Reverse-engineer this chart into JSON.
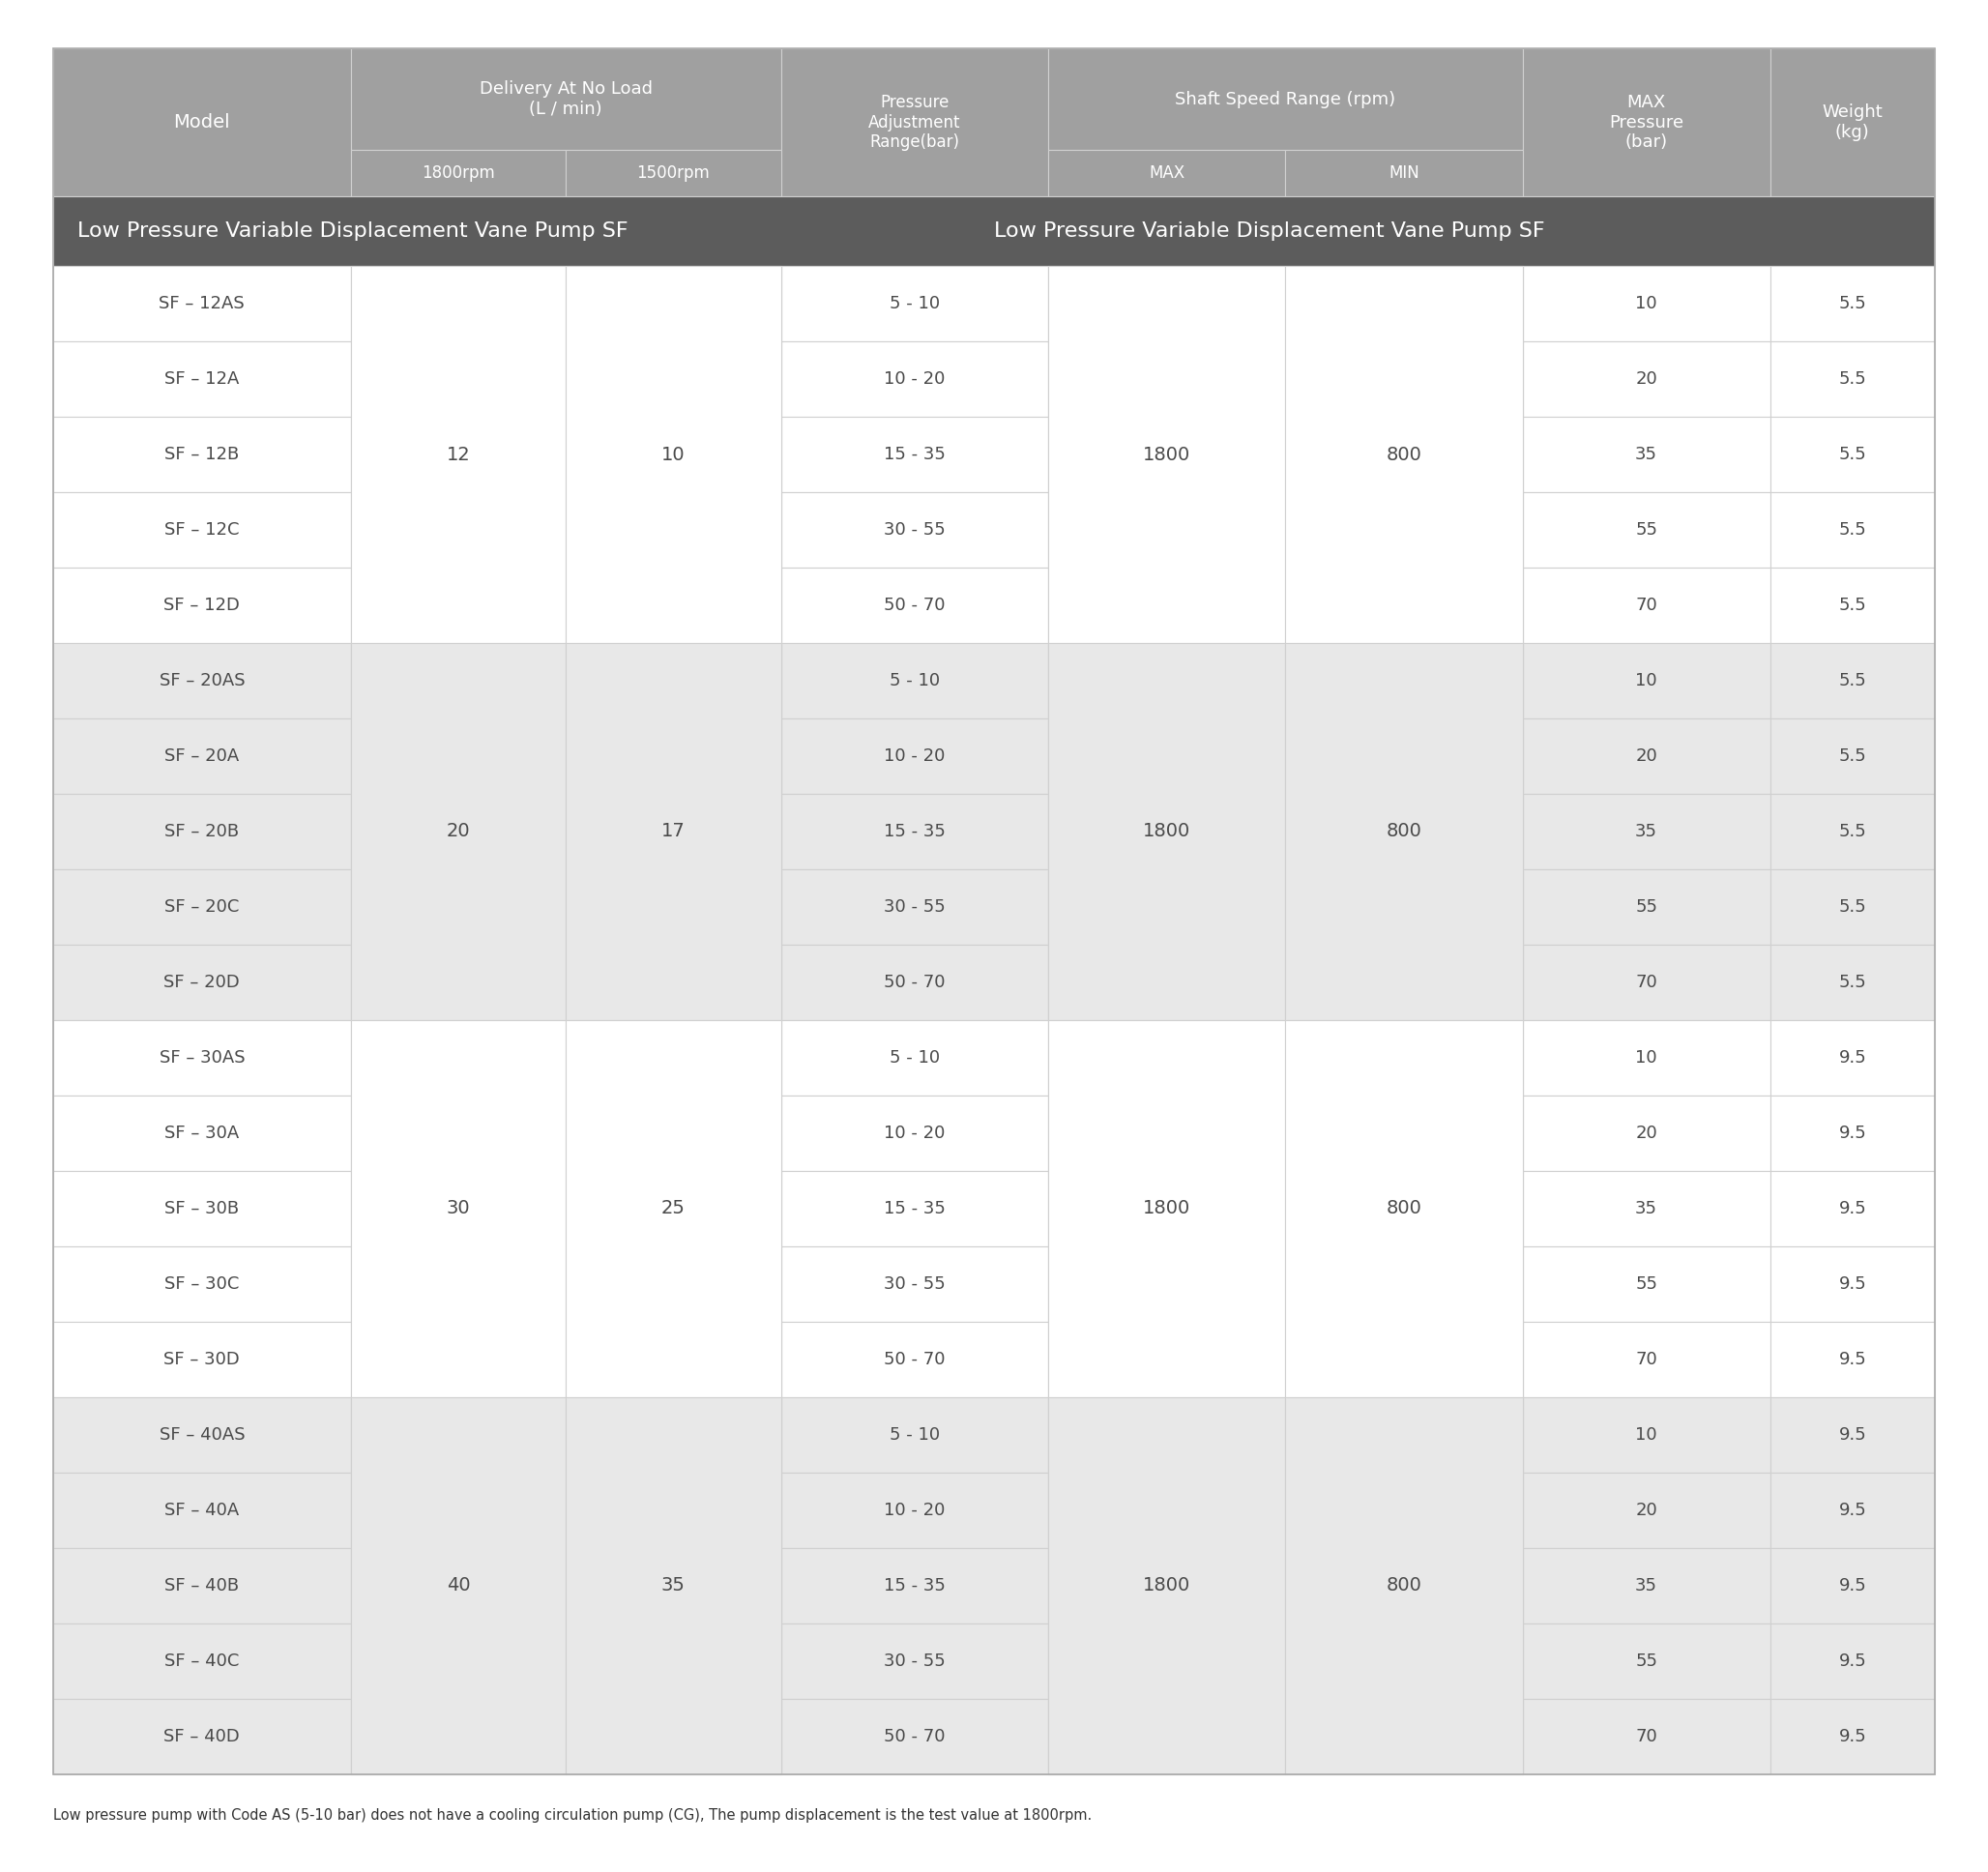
{
  "title": "Low Pressure Variable Displacement Vane Pump SF",
  "footnote": "Low pressure pump with Code AS (5-10 bar) does not have a cooling circulation pump (CG), The pump displacement is the test value at 1800rpm.",
  "header_bg": "#a0a0a0",
  "subheader_bg": "#5c5c5c",
  "group_bg_a": "#ffffff",
  "group_bg_b": "#e8e8e8",
  "row_alt_dark": "#e0e0e0",
  "row_alt_light": "#f0f0f0",
  "header_text_color": "#ffffff",
  "data_text_color": "#4a4a4a",
  "border_color": "#d0d0d0",
  "rows": [
    {
      "model": "SF – 12AS",
      "pressure_adj": "5 - 10",
      "max_pressure": "10",
      "weight": "5.5",
      "group": 0
    },
    {
      "model": "SF – 12A",
      "pressure_adj": "10 - 20",
      "max_pressure": "20",
      "weight": "5.5",
      "group": 0
    },
    {
      "model": "SF – 12B",
      "pressure_adj": "15 - 35",
      "max_pressure": "35",
      "weight": "5.5",
      "group": 0
    },
    {
      "model": "SF – 12C",
      "pressure_adj": "30 - 55",
      "max_pressure": "55",
      "weight": "5.5",
      "group": 0
    },
    {
      "model": "SF – 12D",
      "pressure_adj": "50 - 70",
      "max_pressure": "70",
      "weight": "5.5",
      "group": 0
    },
    {
      "model": "SF – 20AS",
      "pressure_adj": "5 - 10",
      "max_pressure": "10",
      "weight": "5.5",
      "group": 1
    },
    {
      "model": "SF – 20A",
      "pressure_adj": "10 - 20",
      "max_pressure": "20",
      "weight": "5.5",
      "group": 1
    },
    {
      "model": "SF – 20B",
      "pressure_adj": "15 - 35",
      "max_pressure": "35",
      "weight": "5.5",
      "group": 1
    },
    {
      "model": "SF – 20C",
      "pressure_adj": "30 - 55",
      "max_pressure": "55",
      "weight": "5.5",
      "group": 1
    },
    {
      "model": "SF – 20D",
      "pressure_adj": "50 - 70",
      "max_pressure": "70",
      "weight": "5.5",
      "group": 1
    },
    {
      "model": "SF – 30AS",
      "pressure_adj": "5 - 10",
      "max_pressure": "10",
      "weight": "9.5",
      "group": 2
    },
    {
      "model": "SF – 30A",
      "pressure_adj": "10 - 20",
      "max_pressure": "20",
      "weight": "9.5",
      "group": 2
    },
    {
      "model": "SF – 30B",
      "pressure_adj": "15 - 35",
      "max_pressure": "35",
      "weight": "9.5",
      "group": 2
    },
    {
      "model": "SF – 30C",
      "pressure_adj": "30 - 55",
      "max_pressure": "55",
      "weight": "9.5",
      "group": 2
    },
    {
      "model": "SF – 30D",
      "pressure_adj": "50 - 70",
      "max_pressure": "70",
      "weight": "9.5",
      "group": 2
    },
    {
      "model": "SF – 40AS",
      "pressure_adj": "5 - 10",
      "max_pressure": "10",
      "weight": "9.5",
      "group": 3
    },
    {
      "model": "SF – 40A",
      "pressure_adj": "10 - 20",
      "max_pressure": "20",
      "weight": "9.5",
      "group": 3
    },
    {
      "model": "SF – 40B",
      "pressure_adj": "15 - 35",
      "max_pressure": "35",
      "weight": "9.5",
      "group": 3
    },
    {
      "model": "SF – 40C",
      "pressure_adj": "30 - 55",
      "max_pressure": "55",
      "weight": "9.5",
      "group": 3
    },
    {
      "model": "SF – 40D",
      "pressure_adj": "50 - 70",
      "max_pressure": "70",
      "weight": "9.5",
      "group": 3
    }
  ],
  "group_spans": [
    {
      "rows": [
        0,
        4
      ],
      "delivery_1800": "12",
      "delivery_1500": "10",
      "shaft_max": "1800",
      "shaft_min": "800"
    },
    {
      "rows": [
        5,
        9
      ],
      "delivery_1800": "20",
      "delivery_1500": "17",
      "shaft_max": "1800",
      "shaft_min": "800"
    },
    {
      "rows": [
        10,
        14
      ],
      "delivery_1800": "30",
      "delivery_1500": "25",
      "shaft_max": "1800",
      "shaft_min": "800"
    },
    {
      "rows": [
        15,
        19
      ],
      "delivery_1800": "40",
      "delivery_1500": "35",
      "shaft_max": "1800",
      "shaft_min": "800"
    }
  ]
}
